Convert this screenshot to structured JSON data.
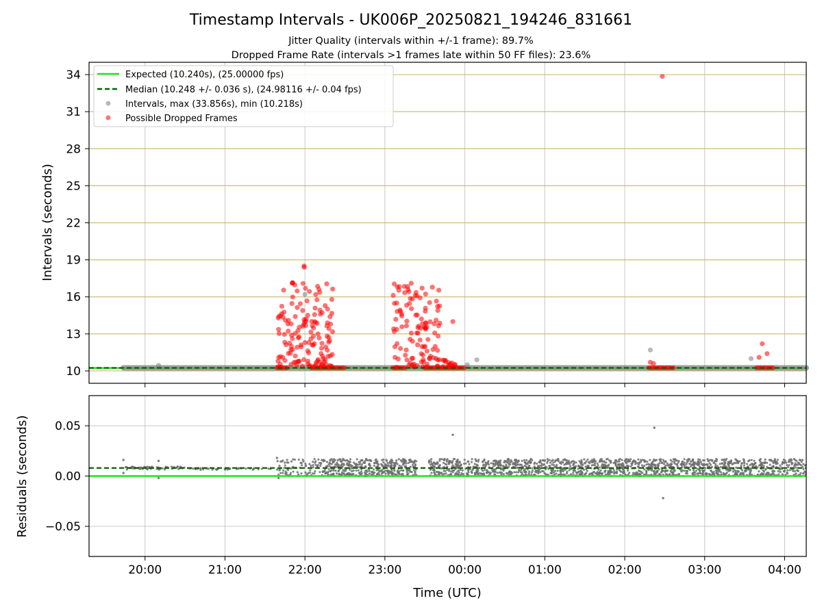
{
  "figure": {
    "title": "Timestamp Intervals - UK006P_20250821_194246_831661",
    "subtitle1": "Jitter Quality (intervals within +/-1 frame): 89.7%",
    "subtitle2": "Dropped Frame Rate (intervals >1 frames late within 50 FF files): 23.6%",
    "xlabel": "Time (UTC)"
  },
  "legend": [
    {
      "label": "Expected (10.240s), (25.00000 fps)",
      "kind": "solid",
      "color": "#19e619"
    },
    {
      "label": "Median (10.248 +/- 0.036 s), (24.98116 +/- 0.04 fps)",
      "kind": "dashed",
      "color": "#006400"
    },
    {
      "label": "Intervals, max (33.856s), min (10.218s)",
      "kind": "dot",
      "color": "#808080"
    },
    {
      "label": "Possible Dropped Frames",
      "kind": "dot",
      "color": "#ff0000"
    }
  ],
  "chart_data": [
    {
      "type": "scatter",
      "ylabel": "Intervals (seconds)",
      "xlim_hours": [
        19.3,
        28.27
      ],
      "ylim": [
        9.0,
        35.0
      ],
      "yticks": [
        10,
        13,
        16,
        19,
        22,
        25,
        28,
        31,
        34
      ],
      "xticks": [
        20,
        21,
        22,
        23,
        24,
        25,
        26,
        27,
        28
      ],
      "xtick_labels": [
        "20:00",
        "21:00",
        "22:00",
        "23:00",
        "00:00",
        "01:00",
        "02:00",
        "03:00",
        "04:00"
      ],
      "expected": 10.24,
      "median": 10.248,
      "colors": {
        "expected": "#19e619",
        "median": "#006400",
        "intervals": "#808080",
        "dropped": "#ff0000",
        "grid": "#c8b060"
      },
      "intervals_band": {
        "x_start": 19.73,
        "x_end": 28.27,
        "y": 10.25
      },
      "intervals_points": [
        {
          "x": 20.17,
          "y": 10.45
        },
        {
          "x": 24.03,
          "y": 10.5
        },
        {
          "x": 24.15,
          "y": 10.9
        },
        {
          "x": 26.32,
          "y": 11.7
        },
        {
          "x": 27.58,
          "y": 11.0
        },
        {
          "x": 22.0,
          "y": 16.2
        }
      ],
      "dropped_segments": [
        {
          "x_start": 21.65,
          "x_end": 21.78,
          "y": 10.25
        },
        {
          "x_start": 22.08,
          "x_end": 22.5,
          "y": 10.25
        },
        {
          "x_start": 23.1,
          "x_end": 23.27,
          "y": 10.25
        },
        {
          "x_start": 23.5,
          "x_end": 24.0,
          "y": 10.25
        },
        {
          "x_start": 26.3,
          "x_end": 26.62,
          "y": 10.25
        },
        {
          "x_start": 27.65,
          "x_end": 27.88,
          "y": 10.25
        }
      ],
      "dropped_clusters": [
        {
          "x_start": 21.65,
          "x_end": 22.35,
          "y_min": 10.3,
          "y_max": 17.2,
          "count": 150,
          "seed": 11
        },
        {
          "x_start": 23.1,
          "x_end": 23.7,
          "y_min": 10.3,
          "y_max": 17.2,
          "count": 115,
          "seed": 29
        },
        {
          "x_start": 23.72,
          "x_end": 23.88,
          "y_min": 10.3,
          "y_max": 11.0,
          "count": 14,
          "seed": 5
        }
      ],
      "dropped_points": [
        {
          "x": 21.99,
          "y": 18.5
        },
        {
          "x": 21.99,
          "y": 18.4
        },
        {
          "x": 23.33,
          "y": 17.1
        },
        {
          "x": 23.85,
          "y": 14.0
        },
        {
          "x": 26.32,
          "y": 10.7
        },
        {
          "x": 26.36,
          "y": 10.6
        },
        {
          "x": 27.72,
          "y": 12.2
        },
        {
          "x": 27.68,
          "y": 11.1
        },
        {
          "x": 27.78,
          "y": 11.4
        },
        {
          "x": 26.47,
          "y": 33.856
        }
      ]
    },
    {
      "type": "scatter",
      "ylabel": "Residuals (seconds)",
      "xlim_hours": [
        19.3,
        28.27
      ],
      "ylim": [
        -0.08,
        0.08
      ],
      "yticks": [
        -0.05,
        0.0,
        0.05
      ],
      "ytick_labels": [
        "−0.05",
        "0.00",
        "0.05"
      ],
      "xticks": [
        20,
        21,
        22,
        23,
        24,
        25,
        26,
        27,
        28
      ],
      "xtick_labels": [
        "20:00",
        "21:00",
        "22:00",
        "23:00",
        "00:00",
        "01:00",
        "02:00",
        "03:00",
        "04:00"
      ],
      "expected": 0.0,
      "median": 0.008,
      "residual_segments": [
        {
          "x_start": 19.73,
          "x_end": 20.5,
          "y_center": 0.008,
          "spread": 0.0015,
          "count": 60,
          "seed": 3
        },
        {
          "x_start": 20.5,
          "x_end": 21.6,
          "y_center": 0.007,
          "spread": 0.0008,
          "count": 40,
          "seed": 7
        },
        {
          "x_start": 21.65,
          "x_end": 22.3,
          "y_min": 0.0,
          "y_max": 0.017,
          "count": 110,
          "seed": 13
        },
        {
          "x_start": 22.3,
          "x_end": 23.4,
          "y_min": 0.0,
          "y_max": 0.017,
          "count": 380,
          "seed": 17
        },
        {
          "x_start": 23.55,
          "x_end": 28.27,
          "y_min": 0.0,
          "y_max": 0.017,
          "count": 1500,
          "seed": 23
        }
      ],
      "residual_points": [
        {
          "x": 19.73,
          "y": 0.016
        },
        {
          "x": 19.73,
          "y": 0.003
        },
        {
          "x": 20.17,
          "y": 0.015
        },
        {
          "x": 20.17,
          "y": -0.002
        },
        {
          "x": 21.65,
          "y": 0.018
        },
        {
          "x": 21.67,
          "y": -0.002
        },
        {
          "x": 23.85,
          "y": 0.041
        },
        {
          "x": 26.37,
          "y": 0.048
        },
        {
          "x": 26.48,
          "y": -0.022
        }
      ]
    }
  ]
}
